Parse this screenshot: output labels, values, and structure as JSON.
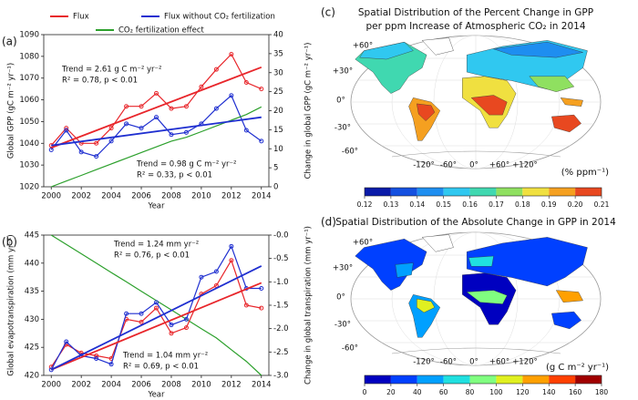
{
  "chart_data": [
    {
      "type": "line",
      "panel": "(a)",
      "xlabel": "Year",
      "ylabel": "Global GPP (gC m⁻² yr⁻¹)",
      "y2label": "Change in global GPP (gC m⁻² yr⁻¹)",
      "x": [
        2000,
        2001,
        2002,
        2003,
        2004,
        2005,
        2006,
        2007,
        2008,
        2009,
        2010,
        2011,
        2012,
        2013,
        2014
      ],
      "xlim": [
        1999.5,
        2014.5
      ],
      "xticks": [
        2000,
        2002,
        2004,
        2006,
        2008,
        2010,
        2012,
        2014
      ],
      "ylim": [
        1020,
        1090
      ],
      "yticks": [
        1020,
        1030,
        1040,
        1050,
        1060,
        1070,
        1080,
        1090
      ],
      "y2lim": [
        0,
        40
      ],
      "y2ticks": [
        0,
        5,
        10,
        15,
        20,
        25,
        30,
        35,
        40
      ],
      "legend": true,
      "series": [
        {
          "name": "Flux",
          "color": "#e8262b",
          "markers": true,
          "values": [
            1039,
            1047,
            1040,
            1040,
            1047,
            1057,
            1057,
            1063,
            1056,
            1057,
            1066,
            1074,
            1081,
            1068,
            1065
          ]
        },
        {
          "name": "Flux without CO₂ fertilization",
          "color": "#1f2fd0",
          "markers": true,
          "values": [
            1037,
            1046,
            1036,
            1034,
            1041,
            1049,
            1047,
            1052,
            1044,
            1045,
            1049,
            1056,
            1062,
            1046,
            1041
          ]
        },
        {
          "name": "CO₂ fertilization effect",
          "color": "#2ca02c",
          "axis": "y2",
          "values": [
            0,
            1.5,
            3,
            4.5,
            6,
            7.5,
            9,
            10.5,
            12,
            13,
            14.5,
            16,
            17.5,
            19,
            21
          ]
        },
        {
          "color": "#e8262b",
          "x": [
            2000,
            2014
          ],
          "values": [
            1038,
            1075
          ]
        },
        {
          "color": "#1f2fd0",
          "x": [
            2000,
            2014
          ],
          "values": [
            1039,
            1052
          ]
        }
      ],
      "annotations": [
        {
          "text": "Trend = 2.61 g C m⁻² yr⁻²",
          "color": "#e8262b"
        },
        {
          "text": "R² = 0.78, p < 0.01",
          "color": "#e8262b"
        },
        {
          "text": "Trend = 0.98 g C m⁻² yr⁻²",
          "color": "#1f2fd0"
        },
        {
          "text": "R² = 0.33, p < 0.01",
          "color": "#1f2fd0"
        }
      ]
    },
    {
      "type": "line",
      "panel": "(b)",
      "xlabel": "Year",
      "ylabel": "Global evapotranspiration (mm yr⁻¹)",
      "y2label": "Change in global transpiration (mm yr⁻¹)",
      "x": [
        2000,
        2001,
        2002,
        2003,
        2004,
        2005,
        2006,
        2007,
        2008,
        2009,
        2010,
        2011,
        2012,
        2013,
        2014
      ],
      "xlim": [
        1999.5,
        2014.5
      ],
      "xticks": [
        2000,
        2002,
        2004,
        2006,
        2008,
        2010,
        2012,
        2014
      ],
      "ylim": [
        420,
        445
      ],
      "yticks": [
        420,
        425,
        430,
        435,
        440,
        445
      ],
      "y2lim": [
        -3.0,
        0.0
      ],
      "y2ticks": [
        {
          "value": -3.0,
          "label": "-3.0"
        },
        -2.5,
        {
          "value": -2.0,
          "label": "-2.0"
        },
        -1.5,
        {
          "value": -1.0,
          "label": "-1.0"
        },
        -0.5,
        {
          "value": 0.0,
          "label": "-0.0"
        }
      ],
      "legend": false,
      "series": [
        {
          "color": "#2ca02c",
          "axis": "y2",
          "values": [
            0,
            -0.2,
            -0.4,
            -0.6,
            -0.8,
            -1.0,
            -1.2,
            -1.4,
            -1.6,
            -1.8,
            -2.0,
            -2.2,
            -2.45,
            -2.7,
            -3.0
          ]
        },
        {
          "color": "#e8262b",
          "markers": true,
          "values": [
            421.5,
            425.5,
            424,
            423.5,
            423,
            430,
            429.5,
            432,
            427.5,
            428.5,
            434.5,
            436,
            440.5,
            432.5,
            432
          ]
        },
        {
          "color": "#1f2fd0",
          "markers": true,
          "values": [
            421,
            426,
            423.5,
            423,
            422,
            431,
            431,
            433,
            429,
            430,
            437.5,
            438.5,
            443,
            435.5,
            435.5
          ]
        },
        {
          "color": "#e8262b",
          "x": [
            2000,
            2014
          ],
          "values": [
            421,
            436.5
          ]
        },
        {
          "color": "#1f2fd0",
          "x": [
            2000,
            2014
          ],
          "values": [
            421,
            439.5
          ]
        }
      ],
      "annotations": [
        {
          "text": "Trend = 1.24 mm yr⁻²",
          "color": "#1f2fd0"
        },
        {
          "text": "R² = 0.76, p < 0.01",
          "color": "#1f2fd0"
        },
        {
          "text": "Trend = 1.04 mm yr⁻²",
          "color": "#e8262b"
        },
        {
          "text": "R² = 0.69, p < 0.01",
          "color": "#e8262b"
        }
      ]
    }
  ],
  "maps": [
    {
      "panel": "(c)",
      "title": [
        "Spatial Distribution of the Percent Change in GPP",
        "per ppm Increase of Atmospheric CO₂ in 2014"
      ],
      "lat_labels": [
        "+60°",
        "+30°",
        "0°",
        "-30°",
        "-60°"
      ],
      "lon_labels": [
        "-120°",
        "-60°",
        "0°",
        "+60°",
        "+120°"
      ],
      "unit": "(% ppm⁻¹)",
      "colorbar": {
        "ticks": [
          0.12,
          0.13,
          0.14,
          0.15,
          0.16,
          0.17,
          0.18,
          0.19,
          {
            "value": 0.2,
            "label": "0.20"
          },
          0.21
        ],
        "colors": [
          "#0a1aa8",
          "#1450e0",
          "#1e8ef0",
          "#30c8f0",
          "#40d8b0",
          "#8fe060",
          "#f0e040",
          "#f5a020",
          "#e84820"
        ]
      }
    },
    {
      "panel": "(d)",
      "title": [
        "Spatial Distribution of the Absolute Change in GPP in 2014"
      ],
      "lat_labels": [
        "+60°",
        "+30°",
        "0°",
        "-30°",
        "-60°"
      ],
      "lon_labels": [
        "-120°",
        "-60°",
        "0°",
        "+60°",
        "+120°"
      ],
      "unit": "(g C m⁻² yr⁻¹)",
      "colorbar": {
        "ticks": [
          0,
          20,
          40,
          60,
          80,
          100,
          120,
          140,
          160,
          180
        ],
        "colors": [
          "#0000c0",
          "#0040ff",
          "#00a0ff",
          "#20e0e0",
          "#80ff80",
          "#e0f020",
          "#ffa000",
          "#ff4000",
          "#a00000"
        ]
      }
    }
  ]
}
